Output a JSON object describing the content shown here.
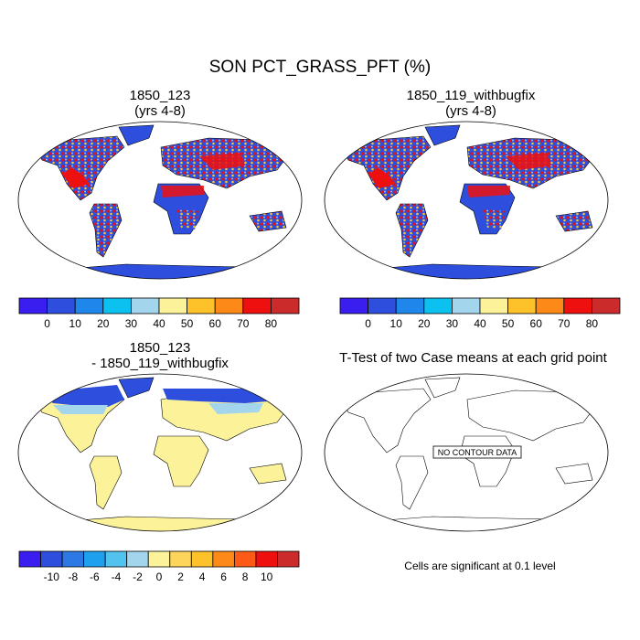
{
  "title": "SON PCT_GRASS_PFT (%)",
  "panels": [
    {
      "title_line1": "1850_123",
      "title_line2": "(yrs 4-8)"
    },
    {
      "title_line1": "1850_119_withbugfix",
      "title_line2": "(yrs 4-8)"
    },
    {
      "title_line1": "1850_123",
      "title_line2": "- 1850_119_withbugfix"
    },
    {
      "title_line1": "T-Test of two Case means at each grid point",
      "title_line2": "",
      "box_label": "NO CONTOUR DATA"
    }
  ],
  "colorbar_pct": {
    "colors": [
      "#3a1ef0",
      "#2e4fde",
      "#1f86ec",
      "#0cc0ef",
      "#a3d6ec",
      "#fbf29a",
      "#fdc229",
      "#fd8a18",
      "#ee0f0f",
      "#cc2b2b"
    ],
    "labels": [
      "0",
      "10",
      "20",
      "30",
      "40",
      "50",
      "60",
      "70",
      "80"
    ]
  },
  "colorbar_diff": {
    "colors": [
      "#3a1ef0",
      "#2e4fde",
      "#2d79e4",
      "#1fa0ef",
      "#52c2ef",
      "#a3d6ec",
      "#fbf29a",
      "#fdd55a",
      "#fdc229",
      "#fd8a18",
      "#fd5a18",
      "#ee0f0f",
      "#cc2b2b"
    ],
    "labels": [
      "-10",
      "-8",
      "-6",
      "-4",
      "-2",
      "0",
      "2",
      "4",
      "6",
      "8",
      "10"
    ]
  },
  "note": "Cells are significant at 0.1 level"
}
